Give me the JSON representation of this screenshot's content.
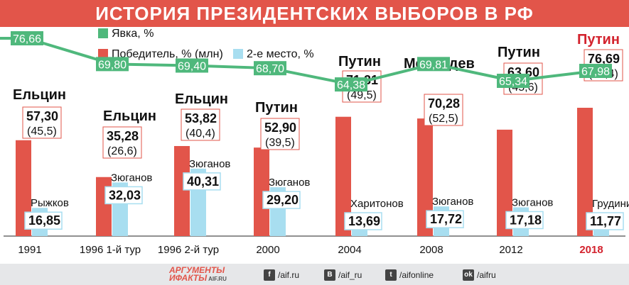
{
  "title": "ИСТОРИЯ ПРЕЗИДЕНТСКИХ ВЫБОРОВ В РФ",
  "legend": {
    "turnout": "Явка, %",
    "winner": "Победитель, % (млн)",
    "second": "2-е место, %"
  },
  "colors": {
    "header": "#e2554a",
    "winner": "#e2554a",
    "second": "#a8def0",
    "turnout": "#4fb87c",
    "highlight": "#d3232e",
    "text": "#111111"
  },
  "chart_data": {
    "type": "bar",
    "categories": [
      "1991",
      "1996 1-й тур",
      "1996 2-й тур",
      "2000",
      "2004",
      "2008",
      "2012",
      "2018"
    ],
    "highlight_category": "2018",
    "winners": [
      "Ельцин",
      "Ельцин",
      "Ельцин",
      "Путин",
      "Путин",
      "Медведев",
      "Путин",
      "Путин"
    ],
    "winner_pct": [
      "57,30",
      "35,28",
      "53,82",
      "52,90",
      "71,31",
      "70,28",
      "63,60",
      "76,69"
    ],
    "winner_votes": [
      "(45,5)",
      "(26,6)",
      "(40,4)",
      "(39,5)",
      "(49,5)",
      "(52,5)",
      "(45,6)",
      "(56,4)"
    ],
    "second_names": [
      "Рыжков",
      "Зюганов",
      "Зюганов",
      "Зюганов",
      "Харитонов",
      "Зюганов",
      "Зюганов",
      "Грудинин"
    ],
    "second_pct": [
      "16,85",
      "32,03",
      "40,31",
      "29,20",
      "13,69",
      "17,72",
      "17,18",
      "11,77"
    ],
    "turnout_pct": [
      "76,66",
      "69,80",
      "69,40",
      "68,70",
      "64,38",
      "69,81",
      "65,34",
      "67,98"
    ],
    "series": [
      {
        "name": "Победитель, % (млн)",
        "values": [
          57.3,
          35.28,
          53.82,
          52.9,
          71.31,
          70.28,
          63.6,
          76.69
        ]
      },
      {
        "name": "2-е место, %",
        "values": [
          16.85,
          32.03,
          40.31,
          29.2,
          13.69,
          17.72,
          17.18,
          11.77
        ]
      },
      {
        "name": "Явка, %",
        "values": [
          76.66,
          69.8,
          69.4,
          68.7,
          64.38,
          69.81,
          65.34,
          67.98
        ]
      }
    ]
  },
  "footer": {
    "logo_line1": "АРГУМЕНТЫ",
    "logo_line2": "ИФАКТЫ",
    "logo_site": "AIF.RU",
    "social": [
      {
        "icon": "f",
        "name": "facebook-icon",
        "text": "/aif.ru"
      },
      {
        "icon": "В",
        "name": "vk-icon",
        "text": "/aif_ru"
      },
      {
        "icon": "t",
        "name": "twitter-icon",
        "text": "/aifonline"
      },
      {
        "icon": "ok",
        "name": "odnoklassniki-icon",
        "text": "/aifru"
      }
    ]
  }
}
